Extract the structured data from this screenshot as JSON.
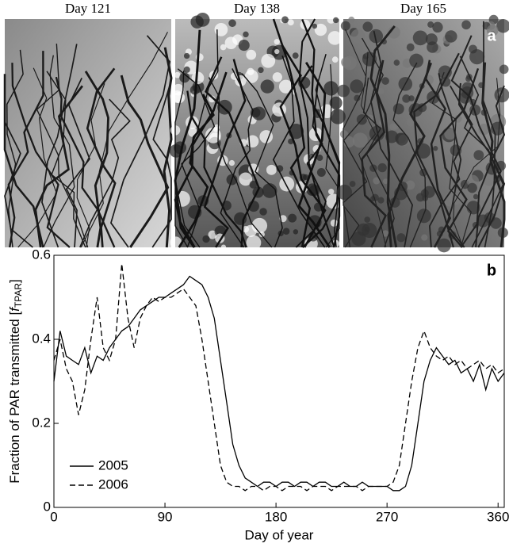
{
  "panel_a": {
    "photo_labels": [
      "Day 121",
      "Day 138",
      "Day 165"
    ],
    "label": "a"
  },
  "chart_data": {
    "type": "line",
    "label": "b",
    "x_label": "Day of year",
    "y_label": {
      "text": "Fraction of PAR transmitted [",
      "symbol": "f",
      "subscript": "TPAR",
      "end": "]"
    },
    "x": [
      0,
      5,
      10,
      15,
      20,
      25,
      30,
      35,
      40,
      45,
      50,
      55,
      60,
      65,
      70,
      75,
      80,
      85,
      90,
      95,
      100,
      105,
      110,
      115,
      120,
      125,
      130,
      135,
      140,
      145,
      150,
      155,
      160,
      165,
      170,
      175,
      180,
      185,
      190,
      195,
      200,
      205,
      210,
      215,
      220,
      225,
      230,
      235,
      240,
      245,
      250,
      255,
      260,
      265,
      270,
      275,
      280,
      285,
      290,
      295,
      300,
      305,
      310,
      315,
      320,
      325,
      330,
      335,
      340,
      345,
      350,
      355,
      360,
      365
    ],
    "series": [
      {
        "name": "2005",
        "color": "#000000",
        "dash": "solid",
        "values": [
          0.3,
          0.42,
          0.36,
          0.35,
          0.34,
          0.38,
          0.32,
          0.36,
          0.35,
          0.38,
          0.4,
          0.42,
          0.43,
          0.45,
          0.47,
          0.48,
          0.49,
          0.5,
          0.5,
          0.51,
          0.52,
          0.53,
          0.55,
          0.54,
          0.53,
          0.5,
          0.45,
          0.35,
          0.25,
          0.15,
          0.1,
          0.07,
          0.06,
          0.05,
          0.06,
          0.06,
          0.05,
          0.06,
          0.06,
          0.05,
          0.06,
          0.06,
          0.05,
          0.06,
          0.06,
          0.05,
          0.05,
          0.06,
          0.05,
          0.05,
          0.06,
          0.05,
          0.05,
          0.05,
          0.05,
          0.04,
          0.04,
          0.05,
          0.1,
          0.2,
          0.3,
          0.35,
          0.38,
          0.36,
          0.34,
          0.35,
          0.32,
          0.33,
          0.3,
          0.34,
          0.28,
          0.33,
          0.3,
          0.32
        ]
      },
      {
        "name": "2006",
        "color": "#000000",
        "dash": "dashed",
        "values": [
          0.35,
          0.4,
          0.33,
          0.3,
          0.22,
          0.28,
          0.4,
          0.5,
          0.38,
          0.35,
          0.4,
          0.58,
          0.45,
          0.38,
          0.45,
          0.48,
          0.5,
          0.49,
          0.5,
          0.5,
          0.51,
          0.52,
          0.5,
          0.48,
          0.4,
          0.3,
          0.2,
          0.1,
          0.06,
          0.05,
          0.05,
          0.04,
          0.05,
          0.05,
          0.04,
          0.05,
          0.05,
          0.04,
          0.05,
          0.05,
          0.05,
          0.04,
          0.05,
          0.05,
          0.05,
          0.04,
          0.05,
          0.05,
          0.05,
          0.05,
          0.04,
          0.05,
          0.05,
          0.05,
          0.05,
          0.06,
          0.1,
          0.2,
          0.3,
          0.38,
          0.42,
          0.38,
          0.36,
          0.35,
          0.36,
          0.34,
          0.35,
          0.33,
          0.34,
          0.35,
          0.33,
          0.34,
          0.32,
          0.33
        ]
      }
    ],
    "xlim": [
      0,
      365
    ],
    "ylim": [
      0,
      0.6
    ],
    "xticks": [
      0,
      90,
      180,
      270,
      360
    ],
    "yticks": [
      0,
      0.2,
      0.4,
      0.6
    ],
    "legend": "lower left"
  }
}
